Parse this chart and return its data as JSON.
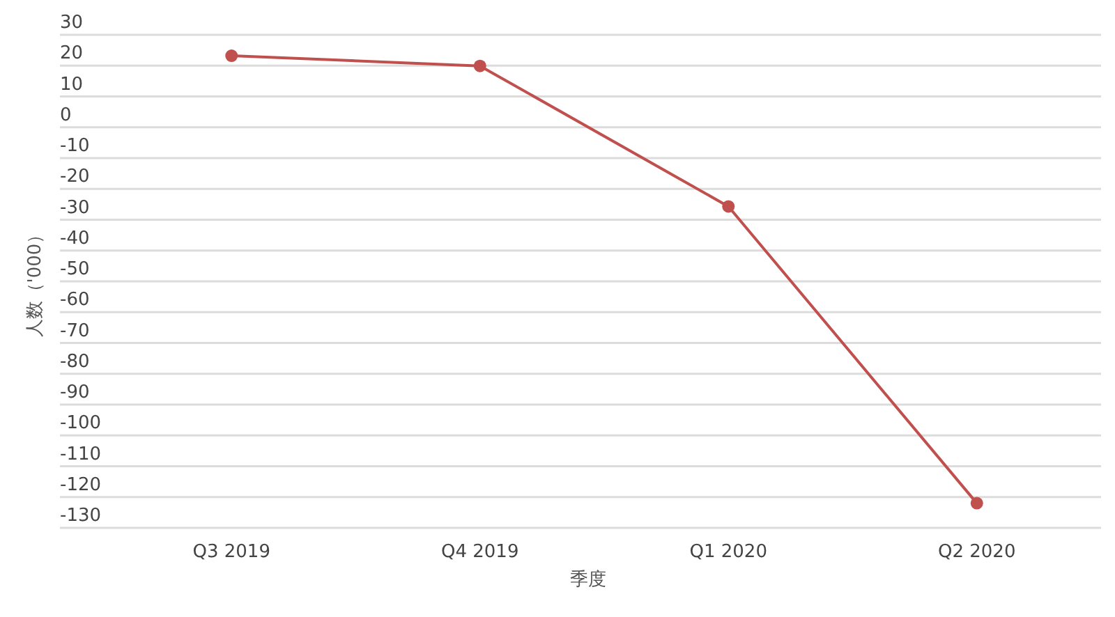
{
  "chart_data": {
    "type": "line",
    "xlabel": "季度",
    "ylabel": "人数（'000）",
    "categories": [
      "Q3 2019",
      "Q4 2019",
      "Q1 2020",
      "Q2 2020"
    ],
    "series": [
      {
        "color": "#c0504d",
        "values": [
          23.2,
          19.9,
          -25.7,
          -122
        ]
      }
    ],
    "ylim": [
      -130,
      30
    ],
    "yticks": [
      30,
      20,
      10,
      0,
      -10,
      -20,
      -30,
      -40,
      -50,
      -60,
      -70,
      -80,
      -90,
      -100,
      -110,
      -120,
      -130
    ],
    "grid": "y",
    "marker": "circle",
    "line_style": "solid"
  }
}
